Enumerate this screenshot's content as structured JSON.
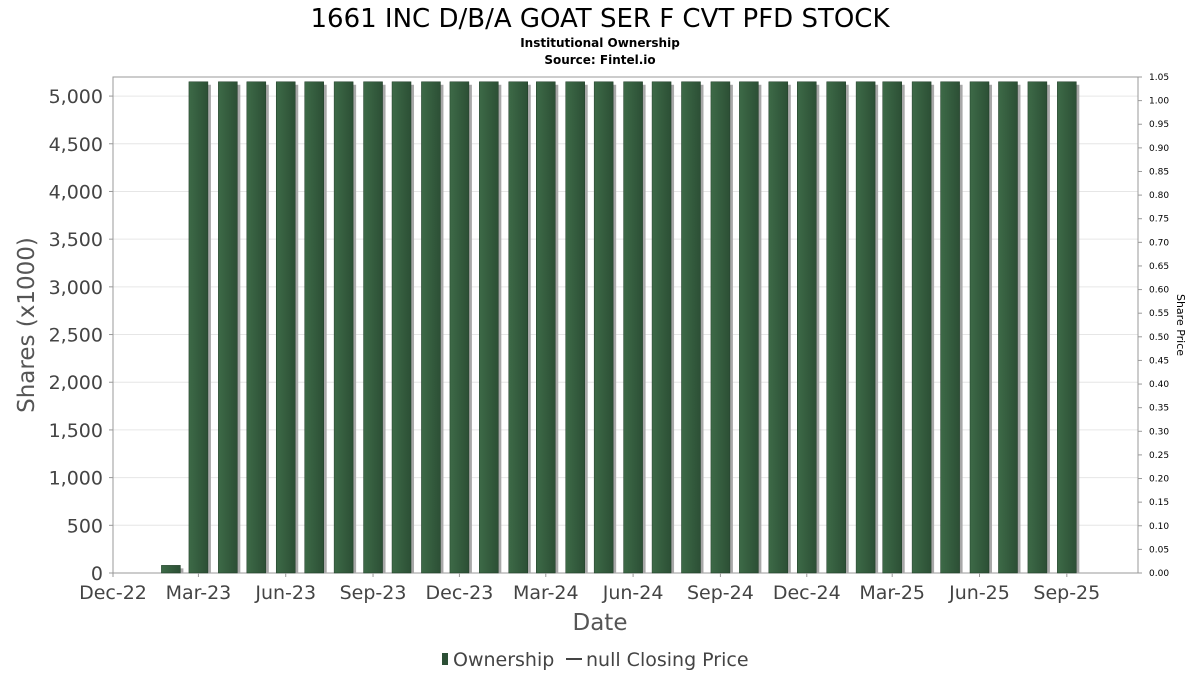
{
  "chart_data": {
    "type": "bar",
    "title": "1661 INC D/B/A GOAT SER F CVT PFD STOCK",
    "subtitle": "Institutional Ownership",
    "source": "Source: Fintel.io",
    "xlabel": "Date",
    "ylabel": "Shares (x1000)",
    "ylabel_right": "Share Price",
    "ylim": [
      0,
      5200
    ],
    "ylim_right": [
      0,
      1.05
    ],
    "yticks": [
      "0",
      "500",
      "1,000",
      "1,500",
      "2,000",
      "2,500",
      "3,000",
      "3,500",
      "4,000",
      "4,500",
      "5,000"
    ],
    "yticks_right": [
      "0.00",
      "0.05",
      "0.10",
      "0.15",
      "0.20",
      "0.25",
      "0.30",
      "0.35",
      "0.40",
      "0.45",
      "0.50",
      "0.55",
      "0.60",
      "0.65",
      "0.70",
      "0.75",
      "0.80",
      "0.85",
      "0.90",
      "0.95",
      "1.00",
      "1.05"
    ],
    "xticks": [
      "Dec-22",
      "Mar-23",
      "Jun-23",
      "Sep-23",
      "Dec-23",
      "Mar-24",
      "Jun-24",
      "Sep-24",
      "Dec-24",
      "Mar-25",
      "Jun-25",
      "Sep-25"
    ],
    "grid": true,
    "legend_position": "bottom",
    "colors": {
      "bar": "#2c4f35",
      "bar_light": "#3d6a47",
      "shadow": "#a8a8a8",
      "grid": "#e6e6e6"
    },
    "series": [
      {
        "name": "Ownership",
        "x": [
          "2023-01-31",
          "2023-03-01",
          "2023-04-01",
          "2023-05-01",
          "2023-06-01",
          "2023-07-01",
          "2023-08-01",
          "2023-09-01",
          "2023-10-01",
          "2023-11-01",
          "2023-12-01",
          "2024-01-01",
          "2024-02-01",
          "2024-03-01",
          "2024-04-01",
          "2024-05-01",
          "2024-06-01",
          "2024-07-01",
          "2024-08-01",
          "2024-09-01",
          "2024-10-01",
          "2024-11-01",
          "2024-12-01",
          "2025-01-01",
          "2025-02-01",
          "2025-03-01",
          "2025-04-01",
          "2025-05-01",
          "2025-06-01",
          "2025-07-01",
          "2025-08-01",
          "2025-09-01"
        ],
        "values": [
          80,
          5150,
          5150,
          5150,
          5150,
          5150,
          5150,
          5150,
          5150,
          5150,
          5150,
          5150,
          5150,
          5150,
          5150,
          5150,
          5150,
          5150,
          5150,
          5150,
          5150,
          5150,
          5150,
          5150,
          5150,
          5150,
          5150,
          5150,
          5150,
          5150,
          5150,
          5150
        ]
      }
    ],
    "legend": {
      "items": [
        "Ownership",
        "null Closing Price"
      ]
    }
  }
}
